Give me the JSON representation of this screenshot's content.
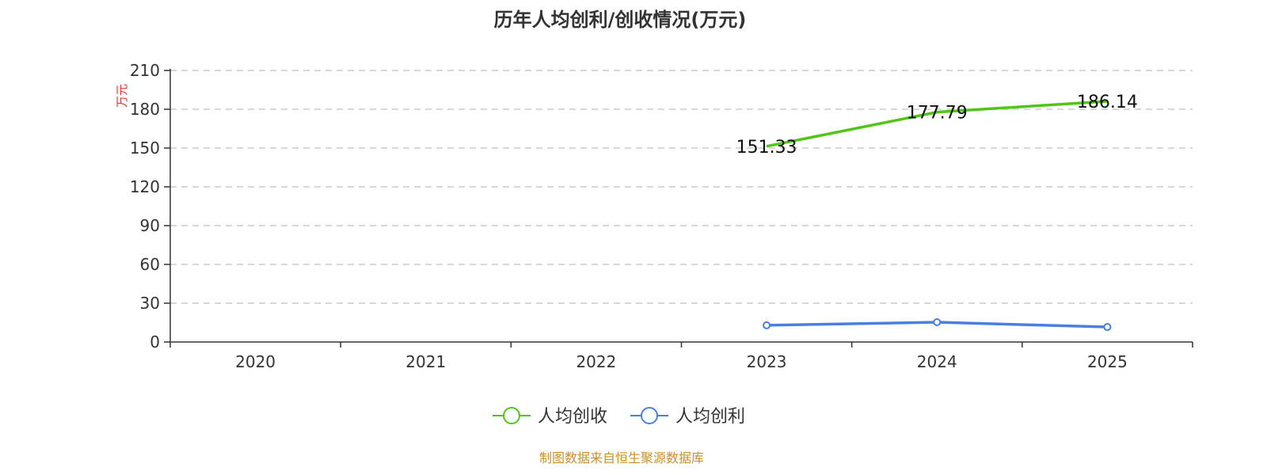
{
  "chart_data": {
    "type": "line",
    "title": "历年人均创利/创收情况(万元)",
    "ylabel": "万元",
    "xlabel": "",
    "ylim": [
      0,
      210
    ],
    "yticks": [
      0,
      30,
      60,
      90,
      120,
      150,
      180,
      210
    ],
    "categories": [
      "2020",
      "2021",
      "2022",
      "2023",
      "2024",
      "2025"
    ],
    "grid": true,
    "legend_position": "bottom-center",
    "series": [
      {
        "name": "人均创收",
        "color": "#52c41a",
        "values": [
          null,
          null,
          null,
          151.33,
          177.79,
          186.14
        ],
        "labels": true,
        "markers": false
      },
      {
        "name": "人均创利",
        "color": "#4a7fe0",
        "values": [
          null,
          null,
          null,
          12.9,
          15.3,
          11.6
        ],
        "labels": false,
        "markers": true
      }
    ]
  },
  "footer": "制图数据来自恒生聚源数据库"
}
